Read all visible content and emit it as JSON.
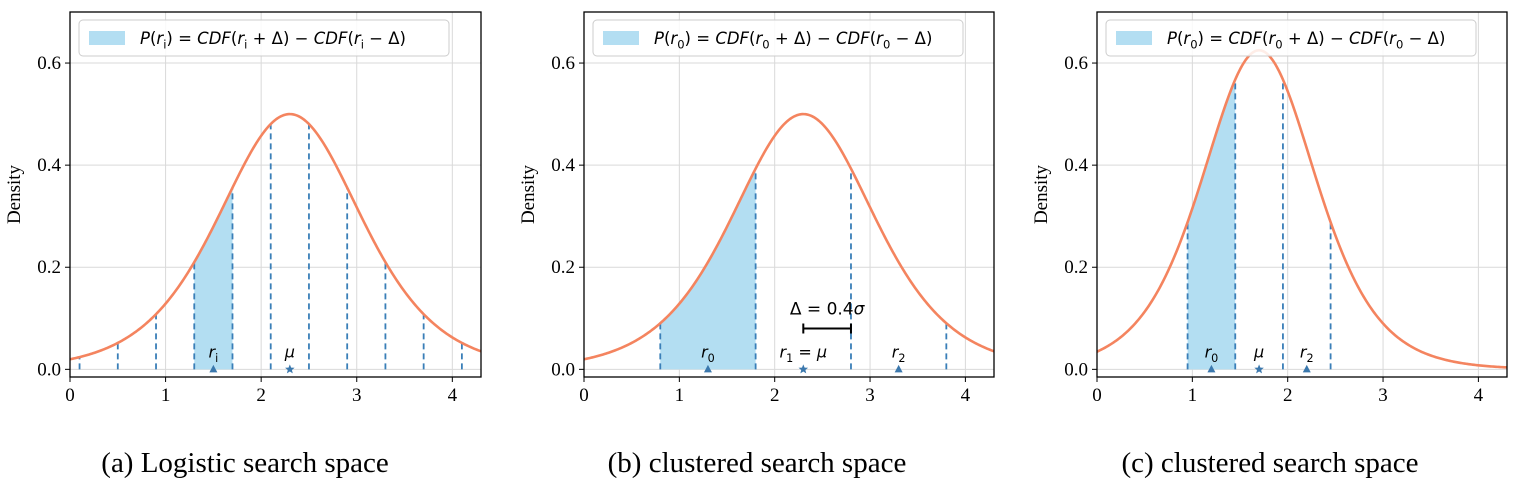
{
  "colors": {
    "curve": "#f4845f",
    "fill": "#b3def2",
    "dash": "#3a7fb8",
    "marker": "#3b78ad",
    "grid": "#d9d9d9",
    "axis": "#000000"
  },
  "chart_data": [
    {
      "type": "area",
      "caption": "(a) Logistic search space",
      "ylabel": "Density",
      "xlim": [
        0,
        4.3
      ],
      "ylim": [
        -0.015,
        0.7
      ],
      "xticks": [
        0,
        1,
        2,
        3,
        4
      ],
      "yticks": [
        0.0,
        0.2,
        0.4,
        0.6
      ],
      "grid": true,
      "legend": {
        "label": "P(r_i) = CDF(r_i + Δ) − CDF(r_i − Δ)",
        "placement": "top-left"
      },
      "curve": {
        "distribution": "logistic",
        "mu": 2.3,
        "scale": 0.5
      },
      "dashed_lines": [
        0.1,
        0.5,
        0.9,
        1.3,
        1.7,
        2.1,
        2.5,
        2.9,
        3.3,
        3.7,
        4.1
      ],
      "shaded_region": [
        1.3,
        1.7
      ],
      "markers": [
        {
          "x": 1.5,
          "label": "r_i",
          "shape": "triangle"
        },
        {
          "x": 2.3,
          "label": "μ",
          "shape": "star"
        }
      ]
    },
    {
      "type": "area",
      "caption": "(b) clustered search space",
      "ylabel": "Density",
      "xlim": [
        0,
        4.3
      ],
      "ylim": [
        -0.015,
        0.7
      ],
      "xticks": [
        0,
        1,
        2,
        3,
        4
      ],
      "yticks": [
        0.0,
        0.2,
        0.4,
        0.6
      ],
      "grid": true,
      "legend": {
        "label": "P(r_0) = CDF(r_0 + Δ) − CDF(r_0 − Δ)",
        "placement": "top-left"
      },
      "curve": {
        "distribution": "logistic",
        "mu": 2.3,
        "scale": 0.5
      },
      "dashed_lines": [
        0.8,
        1.8,
        2.8,
        3.8
      ],
      "shaded_region": [
        0.8,
        1.8
      ],
      "markers": [
        {
          "x": 1.3,
          "label": "r_0",
          "shape": "triangle"
        },
        {
          "x": 2.3,
          "label": "r_1 = μ",
          "shape": "star"
        },
        {
          "x": 3.3,
          "label": "r_2",
          "shape": "triangle"
        }
      ],
      "annotation": {
        "label": "Δ = 0.4σ",
        "x_range": [
          2.3,
          2.8
        ],
        "y": 0.08
      }
    },
    {
      "type": "area",
      "caption": "(c) clustered search space",
      "ylabel": "Density",
      "xlim": [
        0,
        4.3
      ],
      "ylim": [
        -0.015,
        0.7
      ],
      "xticks": [
        0,
        1,
        2,
        3,
        4
      ],
      "yticks": [
        0.0,
        0.2,
        0.4,
        0.6
      ],
      "grid": true,
      "legend": {
        "label": "P(r_0) = CDF(r_0 + Δ) − CDF(r_0 − Δ)",
        "placement": "top-left"
      },
      "curve": {
        "distribution": "logistic",
        "mu": 1.7,
        "scale": 0.4
      },
      "dashed_lines": [
        0.95,
        1.45,
        1.95,
        2.45
      ],
      "shaded_region": [
        0.95,
        1.45
      ],
      "markers": [
        {
          "x": 1.2,
          "label": "r_0",
          "shape": "triangle"
        },
        {
          "x": 1.7,
          "label": "μ",
          "shape": "star"
        },
        {
          "x": 2.2,
          "label": "r_2",
          "shape": "triangle"
        }
      ]
    }
  ]
}
